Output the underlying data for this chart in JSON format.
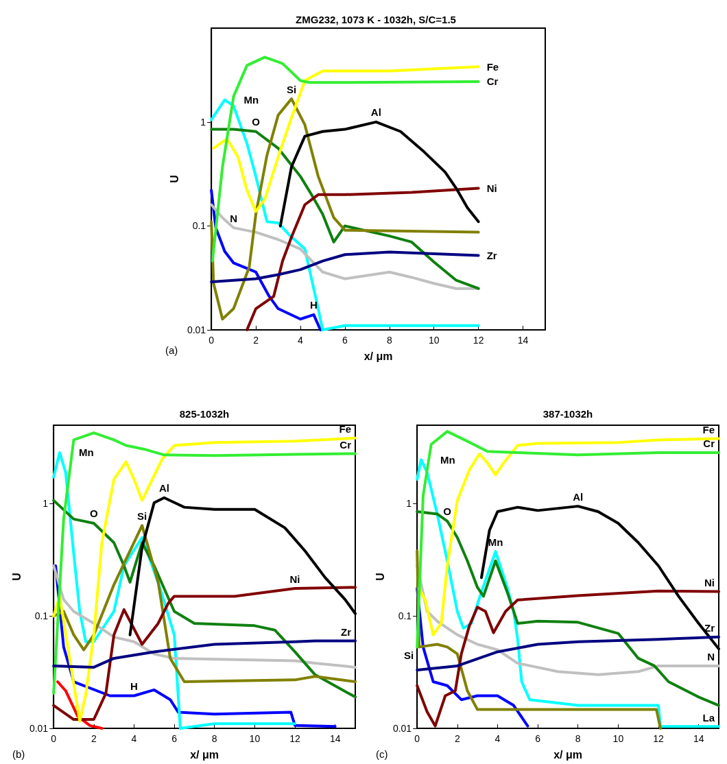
{
  "chart_data": [
    {
      "type": "line",
      "title": "ZMG232, 1073 K - 1032h, S/C=1.5",
      "xlabel": "x/ μm",
      "ylabel": "U",
      "log": "y",
      "grid": false,
      "xlim": [
        0,
        15
      ],
      "xticks": [
        0,
        2,
        4,
        6,
        8,
        10,
        12,
        14
      ],
      "ylim": [
        0.01,
        8
      ],
      "yticks": [
        0.01,
        0.1,
        1
      ],
      "annotations": [
        "(a)",
        {
          "text": "Fe",
          "x": 12,
          "y": 3.4
        },
        {
          "text": "Cr",
          "x": 12,
          "y": 2.45
        },
        {
          "text": "Mn",
          "x": 0.6,
          "y": 1.63
        },
        {
          "text": "Si",
          "x": 3.6,
          "y": 1.67
        },
        {
          "text": "O",
          "x": 2,
          "y": 0.81
        },
        {
          "text": "Al",
          "x": 7.4,
          "y": 1.0
        },
        {
          "text": "Ni",
          "x": 12,
          "y": 0.23
        },
        {
          "text": "N",
          "x": 1,
          "y": 0.096
        },
        {
          "text": "Zr",
          "x": 12,
          "y": 0.052
        },
        {
          "text": "H",
          "x": 4.6,
          "y": 0.014
        }
      ],
      "series": [
        {
          "color": "#0000ff",
          "x": [
            0,
            0.2,
            0.6,
            1,
            2,
            2.6,
            3,
            4,
            4.6,
            4.9
          ],
          "values": [
            0.22,
            0.096,
            0.057,
            0.044,
            0.036,
            0.021,
            0.016,
            0.0127,
            0.014,
            0.01
          ]
        },
        {
          "color": "#00ffff",
          "x": [
            0,
            0.6,
            1,
            1.6,
            2,
            2.5,
            3,
            3.5,
            4.2,
            4.8,
            5,
            6,
            8,
            10,
            12
          ],
          "values": [
            1.05,
            1.63,
            1.43,
            0.62,
            0.3,
            0.11,
            0.107,
            0.082,
            0.06,
            0.016,
            0.01,
            0.011,
            0.011,
            0.011,
            0.011
          ]
        },
        {
          "color": "#c0c0c0",
          "x": [
            0,
            0.5,
            1,
            2,
            3,
            4,
            5,
            6,
            8,
            9,
            10,
            11,
            12
          ],
          "values": [
            0.16,
            0.12,
            0.096,
            0.087,
            0.074,
            0.06,
            0.036,
            0.031,
            0.036,
            0.032,
            0.028,
            0.025,
            0.025
          ]
        },
        {
          "color": "#108010",
          "x": [
            0,
            1,
            2,
            3,
            4,
            4.5,
            5,
            5.5,
            6,
            8,
            9,
            10,
            11,
            12
          ],
          "values": [
            0.85,
            0.85,
            0.81,
            0.56,
            0.3,
            0.2,
            0.13,
            0.07,
            0.1,
            0.08,
            0.07,
            0.045,
            0.03,
            0.025
          ]
        },
        {
          "color": "#808000",
          "x": [
            0,
            0.1,
            0.5,
            1,
            1.7,
            2,
            2.5,
            3,
            3.6,
            4.2,
            4.8,
            5.5,
            6,
            12
          ],
          "values": [
            0.11,
            0.028,
            0.0127,
            0.016,
            0.04,
            0.13,
            0.48,
            1.16,
            1.67,
            0.94,
            0.3,
            0.12,
            0.091,
            0.087
          ]
        },
        {
          "color": "#800000",
          "x": [
            1.6,
            2,
            2.8,
            3.2,
            3.6,
            4.2,
            4.8,
            6,
            9,
            12
          ],
          "values": [
            0.01,
            0.016,
            0.021,
            0.046,
            0.078,
            0.16,
            0.2,
            0.2,
            0.21,
            0.23
          ]
        },
        {
          "color": "#000000",
          "x": [
            3.1,
            3.6,
            4.2,
            5,
            6,
            7.4,
            8.5,
            9.5,
            10.5,
            11,
            11.5,
            12
          ],
          "values": [
            0.1,
            0.37,
            0.73,
            0.81,
            0.85,
            1.0,
            0.81,
            0.53,
            0.33,
            0.23,
            0.15,
            0.11
          ]
        },
        {
          "color": "#ffff00",
          "x": [
            0.1,
            0.7,
            1.2,
            1.6,
            2,
            2.4,
            3,
            3.6,
            4.2,
            5,
            8,
            12
          ],
          "values": [
            0.56,
            0.69,
            0.46,
            0.22,
            0.138,
            0.18,
            0.46,
            1.1,
            2.5,
            3.1,
            3.1,
            3.4
          ]
        },
        {
          "color": "#33ee33",
          "x": [
            0.05,
            0.5,
            1,
            1.6,
            2.4,
            3.2,
            4,
            4.4,
            6,
            12
          ],
          "values": [
            0.046,
            0.37,
            1.76,
            3.5,
            4.2,
            3.65,
            2.5,
            2.4,
            2.4,
            2.45
          ]
        },
        {
          "color": "#000080",
          "x": [
            0,
            2,
            3,
            4,
            5,
            6,
            8,
            10,
            12
          ],
          "values": [
            0.029,
            0.031,
            0.034,
            0.038,
            0.046,
            0.053,
            0.056,
            0.054,
            0.052
          ]
        }
      ]
    },
    {
      "type": "line",
      "title": "825-1032h",
      "xlabel": "x/ μm",
      "ylabel": "U",
      "log": "y",
      "grid": false,
      "xlim": [
        0,
        15
      ],
      "xticks": [
        0,
        2,
        4,
        6,
        8,
        10,
        12,
        14
      ],
      "ylim": [
        0.01,
        5
      ],
      "yticks": [
        0.01,
        0.1,
        1
      ],
      "annotations": [
        "(b)",
        {
          "text": "Fe",
          "x": 15,
          "y": 3.84
        },
        {
          "text": "Cr",
          "x": 15,
          "y": 2.79
        },
        {
          "text": "Mn",
          "x": 0.3,
          "y": 2.85
        },
        {
          "text": "O",
          "x": 2,
          "y": 0.67
        },
        {
          "text": "Si",
          "x": 4.4,
          "y": 0.64
        },
        {
          "text": "Al",
          "x": 5.5,
          "y": 1.13
        },
        {
          "text": "Ni",
          "x": 12,
          "y": 0.176
        },
        {
          "text": "Zr",
          "x": 15,
          "y": 0.06
        },
        {
          "text": "H",
          "x": 4,
          "y": 0.0195
        }
      ],
      "series": [
        {
          "color": "#ff0000",
          "x": [
            0.2,
            0.6,
            1.2,
            1.8,
            2.4
          ],
          "values": [
            0.026,
            0.0216,
            0.0128,
            0.0106,
            0.01
          ]
        },
        {
          "color": "#0000ff",
          "x": [
            0.1,
            0.5,
            1,
            2.8,
            4,
            5,
            5.8,
            6.2,
            8,
            11.8,
            12,
            14
          ],
          "values": [
            0.28,
            0.053,
            0.026,
            0.0195,
            0.0195,
            0.022,
            0.018,
            0.0139,
            0.0134,
            0.0139,
            0.0106,
            0.0104
          ]
        },
        {
          "color": "#00ffff",
          "x": [
            0,
            0.3,
            0.6,
            1,
            1.3,
            1.6,
            2,
            3,
            3.5,
            4.4,
            5.3,
            6,
            6.3,
            8,
            12
          ],
          "values": [
            1.73,
            2.85,
            1.9,
            0.36,
            0.11,
            0.059,
            0.059,
            0.11,
            0.28,
            0.5,
            0.176,
            0.068,
            0.01,
            0.011,
            0.011
          ]
        },
        {
          "color": "#c0c0c0",
          "x": [
            0,
            0.5,
            1,
            2,
            3,
            4,
            5,
            6,
            12,
            13,
            15
          ],
          "values": [
            0.28,
            0.14,
            0.11,
            0.086,
            0.065,
            0.059,
            0.046,
            0.042,
            0.04,
            0.038,
            0.035
          ]
        },
        {
          "color": "#108010",
          "x": [
            0,
            1,
            2,
            3,
            3.5,
            3.8,
            4.4,
            5,
            6,
            7,
            10,
            11,
            12,
            13,
            15
          ],
          "values": [
            1.07,
            0.73,
            0.67,
            0.45,
            0.28,
            0.2,
            0.45,
            0.28,
            0.11,
            0.086,
            0.082,
            0.075,
            0.048,
            0.03,
            0.019
          ]
        },
        {
          "color": "#808000",
          "x": [
            0,
            0.5,
            1,
            1.5,
            2,
            3,
            4.4,
            5.2,
            5.8,
            6.5,
            12,
            13,
            15
          ],
          "values": [
            0.1,
            0.11,
            0.068,
            0.05,
            0.068,
            0.19,
            0.64,
            0.2,
            0.042,
            0.026,
            0.027,
            0.029,
            0.026
          ]
        },
        {
          "color": "#800000",
          "x": [
            0,
            1,
            2,
            2.6,
            3,
            3.5,
            4.4,
            5.2,
            5.7,
            6,
            9,
            12,
            15
          ],
          "values": [
            0.016,
            0.012,
            0.012,
            0.0205,
            0.068,
            0.114,
            0.056,
            0.086,
            0.13,
            0.15,
            0.15,
            0.176,
            0.18
          ]
        },
        {
          "color": "#000000",
          "x": [
            3.8,
            4.4,
            5,
            5.5,
            6.5,
            8,
            10,
            11.5,
            12.5,
            13.5,
            14.5,
            15
          ],
          "values": [
            0.068,
            0.41,
            1.02,
            1.13,
            0.93,
            0.89,
            0.89,
            0.61,
            0.38,
            0.22,
            0.14,
            0.105
          ]
        },
        {
          "color": "#ffff00",
          "x": [
            0,
            0.3,
            1.3,
            1.6,
            2,
            2.4,
            3,
            3.6,
            4,
            4.4,
            4.8,
            5.4,
            6,
            8,
            12,
            15
          ],
          "values": [
            0.1,
            0.15,
            0.0116,
            0.02,
            0.068,
            0.45,
            1.65,
            2.36,
            1.65,
            1.07,
            1.5,
            2.5,
            3.3,
            3.5,
            3.6,
            3.84
          ]
        },
        {
          "color": "#33ee33",
          "x": [
            0,
            0.5,
            1,
            2,
            3,
            3.6,
            4.5,
            5.5,
            8,
            12,
            15
          ],
          "values": [
            0.0205,
            0.73,
            3.7,
            4.28,
            3.7,
            3.3,
            3.06,
            2.72,
            2.68,
            2.75,
            2.79
          ]
        },
        {
          "color": "#000080",
          "x": [
            0,
            2,
            3,
            5,
            8,
            12,
            13,
            15
          ],
          "values": [
            0.036,
            0.035,
            0.042,
            0.048,
            0.056,
            0.059,
            0.06,
            0.06
          ]
        }
      ]
    },
    {
      "type": "line",
      "title": "387-1032h",
      "xlabel": "x/ μm",
      "ylabel": "U",
      "log": "y",
      "grid": false,
      "xlim": [
        0,
        15
      ],
      "xticks": [
        0,
        2,
        4,
        6,
        8,
        10,
        12,
        14
      ],
      "ylim": [
        0.01,
        5
      ],
      "yticks": [
        0.01,
        0.1,
        1
      ],
      "annotations": [
        "(c)",
        {
          "text": "Fe",
          "x": 15,
          "y": 3.8
        },
        {
          "text": "Cr",
          "x": 15,
          "y": 2.85
        },
        {
          "text": "Mn",
          "x": 0.2,
          "y": 2.47
        },
        {
          "text": "O",
          "x": 1.5,
          "y": 0.7
        },
        {
          "text": "Al",
          "x": 8,
          "y": 0.95
        },
        {
          "text": "Mn",
          "x": 3.9,
          "y": 0.376
        },
        {
          "text": "Ni",
          "x": 15,
          "y": 0.165
        },
        {
          "text": "Zr",
          "x": 15,
          "y": 0.065
        },
        {
          "text": "N",
          "x": 15,
          "y": 0.036
        },
        {
          "text": "La",
          "x": 15,
          "y": 0.0104
        },
        {
          "text": "Si",
          "x": 0.1,
          "y": 0.053
        }
      ],
      "series": [
        {
          "color": "#0000ff",
          "x": [
            0,
            0.3,
            0.8,
            1.5,
            2.2,
            3,
            4,
            4.8,
            5.5
          ],
          "values": [
            0.176,
            0.053,
            0.026,
            0.024,
            0.018,
            0.0195,
            0.0195,
            0.016,
            0.0105
          ]
        },
        {
          "color": "#00ffff",
          "x": [
            0,
            0.2,
            0.5,
            1,
            1.5,
            2,
            2.3,
            2.7,
            3.1,
            3.9,
            4.5,
            4.8,
            5,
            5.2,
            5.6,
            8,
            12,
            12.1,
            15
          ],
          "values": [
            1.65,
            2.47,
            1.9,
            0.81,
            0.31,
            0.11,
            0.078,
            0.086,
            0.145,
            0.376,
            0.176,
            0.11,
            0.062,
            0.026,
            0.018,
            0.016,
            0.016,
            0.0104,
            0.0104
          ]
        },
        {
          "color": "#c0c0c0",
          "x": [
            0,
            0.5,
            1,
            2,
            3,
            4,
            5,
            7,
            9,
            11,
            12,
            15
          ],
          "values": [
            0.28,
            0.11,
            0.09,
            0.068,
            0.056,
            0.05,
            0.038,
            0.032,
            0.03,
            0.032,
            0.036,
            0.036
          ]
        },
        {
          "color": "#108010",
          "x": [
            0,
            1,
            1.5,
            2,
            2.5,
            3,
            3.3,
            3.9,
            4.5,
            5,
            6,
            8,
            10,
            11,
            11.8,
            12.5,
            14,
            15
          ],
          "values": [
            0.85,
            0.81,
            0.7,
            0.5,
            0.31,
            0.18,
            0.15,
            0.31,
            0.16,
            0.086,
            0.09,
            0.088,
            0.07,
            0.042,
            0.036,
            0.026,
            0.019,
            0.016
          ]
        },
        {
          "color": "#808000",
          "x": [
            0,
            0.1,
            1,
            1.5,
            2,
            2.5,
            3,
            6,
            11.9,
            12.1
          ],
          "values": [
            0.38,
            0.053,
            0.056,
            0.053,
            0.046,
            0.0216,
            0.0147,
            0.0147,
            0.0147,
            0.01
          ]
        },
        {
          "color": "#800000",
          "x": [
            0,
            0.5,
            0.9,
            1.4,
            1.9,
            2.2,
            2.6,
            3,
            3.4,
            3.8,
            4.4,
            5,
            8,
            12,
            15
          ],
          "values": [
            0.024,
            0.014,
            0.0105,
            0.0195,
            0.0216,
            0.046,
            0.082,
            0.12,
            0.11,
            0.071,
            0.11,
            0.139,
            0.152,
            0.167,
            0.165
          ]
        },
        {
          "color": "#000000",
          "x": [
            3.2,
            3.6,
            4,
            5,
            6,
            8,
            9,
            10,
            11,
            12,
            13,
            14,
            15
          ],
          "values": [
            0.22,
            0.58,
            0.85,
            0.93,
            0.87,
            0.95,
            0.85,
            0.67,
            0.45,
            0.28,
            0.15,
            0.086,
            0.051
          ]
        },
        {
          "color": "#ffff00",
          "x": [
            0.1,
            0.4,
            0.8,
            1.2,
            1.5,
            2,
            2.6,
            3.1,
            3.5,
            3.9,
            4.3,
            5,
            6,
            10,
            12,
            15
          ],
          "values": [
            0.176,
            0.14,
            0.068,
            0.086,
            0.28,
            1.07,
            2.0,
            2.78,
            2.3,
            1.81,
            2.3,
            3.3,
            3.45,
            3.5,
            3.7,
            3.8
          ]
        },
        {
          "color": "#33ee33",
          "x": [
            0,
            0.3,
            0.7,
            1.5,
            2.5,
            3.5,
            5,
            8,
            12,
            15
          ],
          "values": [
            0.053,
            1.18,
            3.37,
            4.4,
            3.6,
            2.92,
            2.85,
            2.72,
            2.85,
            2.85
          ]
        },
        {
          "color": "#000080",
          "x": [
            0,
            2,
            4,
            6,
            8,
            12,
            13,
            15
          ],
          "values": [
            0.033,
            0.036,
            0.048,
            0.056,
            0.059,
            0.062,
            0.063,
            0.065
          ]
        }
      ]
    }
  ]
}
